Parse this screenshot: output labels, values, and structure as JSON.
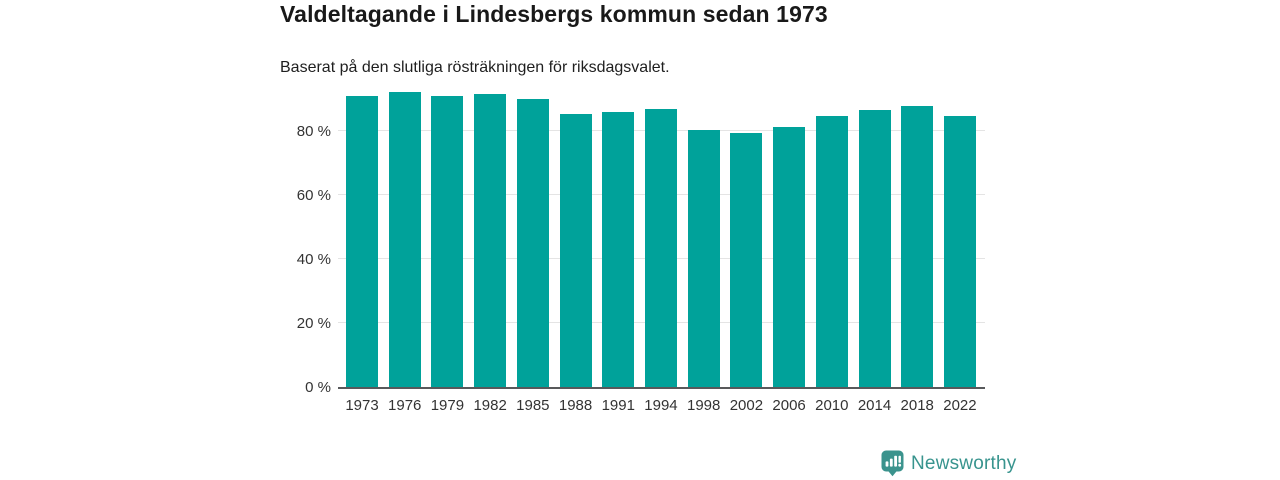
{
  "chart": {
    "title": "Valdeltagande i Lindesbergs kommun sedan 1973",
    "subtitle": "Baserat på den slutliga rösträkningen för riksdagsvalet."
  },
  "chart_data": {
    "type": "bar",
    "categories": [
      "1973",
      "1976",
      "1979",
      "1982",
      "1985",
      "1988",
      "1991",
      "1994",
      "1998",
      "2002",
      "2006",
      "2010",
      "2014",
      "2018",
      "2022"
    ],
    "values": [
      90.9,
      92.1,
      90.8,
      91.6,
      89.9,
      85.4,
      86.0,
      86.9,
      80.4,
      79.3,
      81.4,
      84.8,
      86.7,
      87.8,
      84.6
    ],
    "title": "Valdeltagande i Lindesbergs kommun sedan 1973",
    "subtitle": "Baserat på den slutliga rösträkningen för riksdagsvalet.",
    "xlabel": "",
    "ylabel": "",
    "ylim": [
      0,
      92.5
    ],
    "yticks": [
      0,
      20,
      40,
      60,
      80
    ],
    "ytick_labels": [
      "0 %",
      "20 %",
      "40 %",
      "60 %",
      "80 %"
    ],
    "grid": true,
    "legend": false,
    "bar_color": "#00a29a"
  },
  "footer": {
    "brand": "Newsworthy"
  },
  "colors": {
    "bar": "#00a29a",
    "title_text": "#191919",
    "axis_text": "#333333",
    "gridline": "#e4e4e4",
    "baseline": "#58595b",
    "brand": "#38948e"
  }
}
